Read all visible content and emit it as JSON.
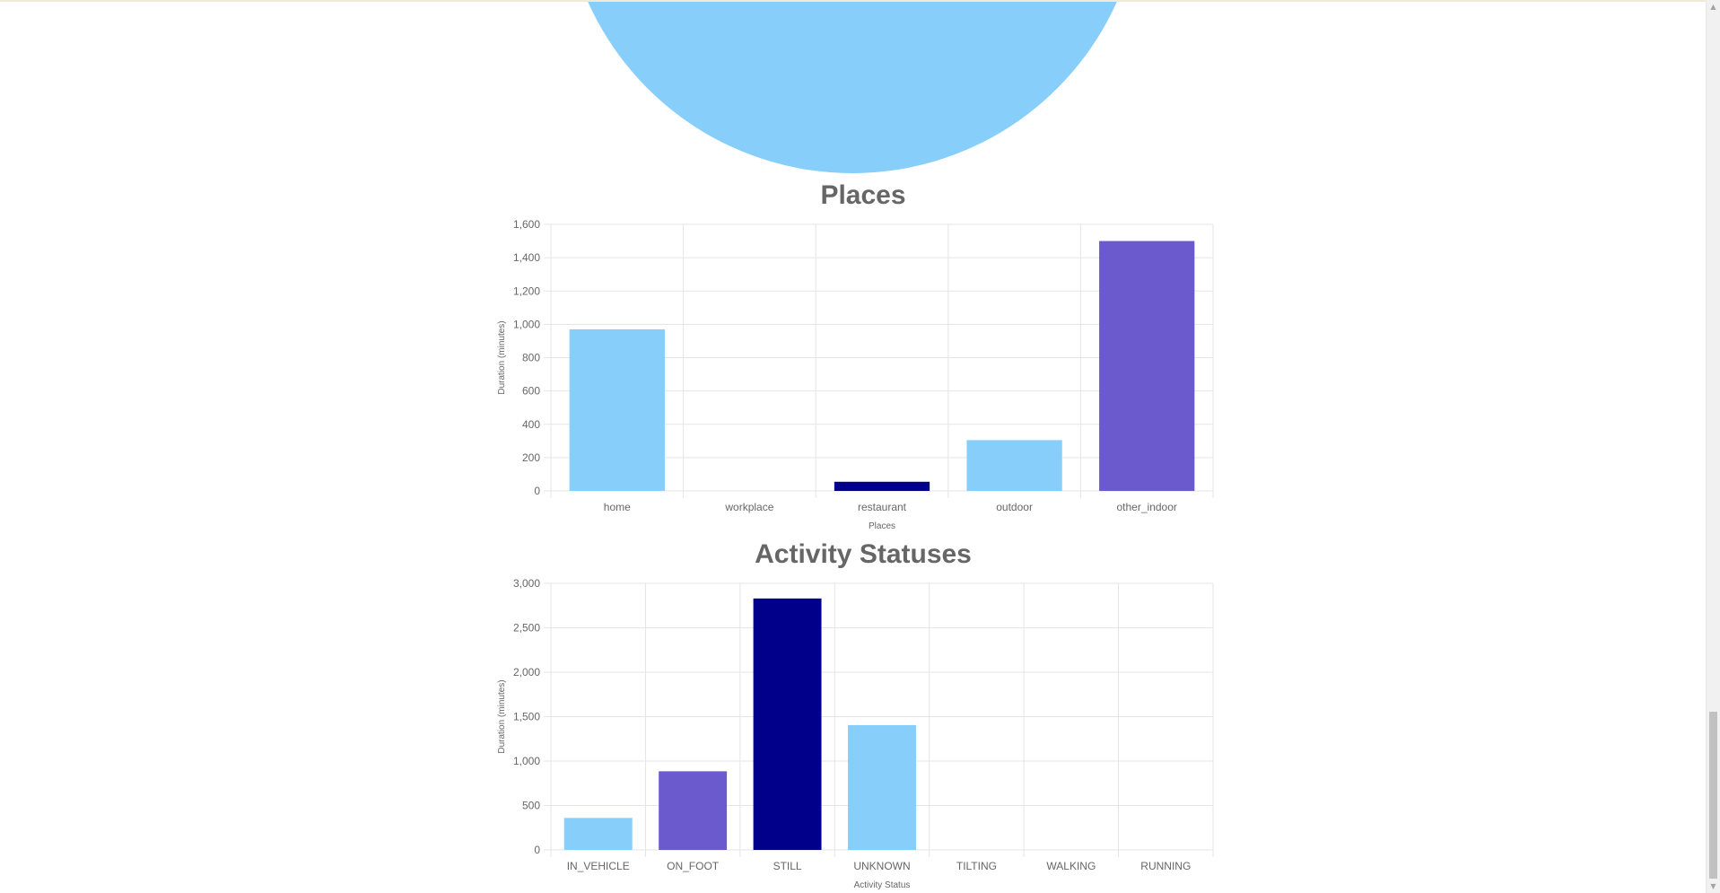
{
  "colors": {
    "light_blue": "#87cefa",
    "slate_blue": "#6a5acd",
    "dark_blue": "#00008b",
    "grid": "#e5e5e5",
    "text": "#666666"
  },
  "pie": {
    "color": "#87cefa"
  },
  "chart_data": [
    {
      "type": "bar",
      "title": "Places",
      "xlabel": "Places",
      "ylabel": "Duration (minutes)",
      "ylim": [
        0,
        1600
      ],
      "yticks": [
        0,
        200,
        400,
        600,
        800,
        1000,
        1200,
        1400,
        1600
      ],
      "ytick_labels": [
        "0",
        "200",
        "400",
        "600",
        "800",
        "1,000",
        "1,200",
        "1,400",
        "1,600"
      ],
      "categories": [
        "home",
        "workplace",
        "restaurant",
        "outdoor",
        "other_indoor"
      ],
      "values": [
        970,
        0,
        55,
        305,
        1500
      ],
      "bar_colors": [
        "#87cefa",
        "#87cefa",
        "#00008b",
        "#87cefa",
        "#6a5acd"
      ],
      "grid": true,
      "legend": "none"
    },
    {
      "type": "bar",
      "title": "Activity Statuses",
      "xlabel": "Activity Status",
      "ylabel": "Duration (minutes)",
      "ylim": [
        0,
        3000
      ],
      "yticks": [
        0,
        500,
        1000,
        1500,
        2000,
        2500,
        3000
      ],
      "ytick_labels": [
        "0",
        "500",
        "1,000",
        "1,500",
        "2,000",
        "2,500",
        "3,000"
      ],
      "categories": [
        "IN_VEHICLE",
        "ON_FOOT",
        "STILL",
        "UNKNOWN",
        "TILTING",
        "WALKING",
        "RUNNING"
      ],
      "values": [
        360,
        885,
        2830,
        1405,
        0,
        0,
        0
      ],
      "bar_colors": [
        "#87cefa",
        "#6a5acd",
        "#00008b",
        "#87cefa",
        "#87cefa",
        "#87cefa",
        "#87cefa"
      ],
      "grid": true,
      "legend": "none"
    }
  ],
  "scrollbar": {
    "up_icon": "triangle-up-icon",
    "down_icon": "triangle-down-icon"
  }
}
